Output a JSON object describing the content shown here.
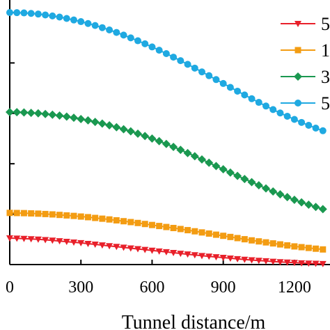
{
  "chart_data": {
    "type": "line",
    "title": "",
    "xlabel": "Tunnel distance/m",
    "ylabel": "",
    "xlim": [
      0,
      1350
    ],
    "ylim": [
      0,
      100
    ],
    "x_ticks": [
      0,
      300,
      600,
      900,
      1200
    ],
    "x_tick_labels": [
      "0",
      "300",
      "600",
      "900",
      "1200"
    ],
    "y_ticks": [
      0,
      20,
      40,
      60,
      80,
      100
    ],
    "grid": false,
    "legend_position": "top-right",
    "series": [
      {
        "name": "5",
        "color": "#e8202a",
        "marker": "triangle-down",
        "x": [
          0,
          30,
          60,
          90,
          120,
          150,
          180,
          210,
          240,
          270,
          300,
          330,
          360,
          390,
          420,
          450,
          480,
          510,
          540,
          570,
          600,
          630,
          660,
          690,
          720,
          750,
          780,
          810,
          840,
          870,
          900,
          930,
          960,
          990,
          1020,
          1050,
          1080,
          1110,
          1140,
          1170,
          1200,
          1230,
          1260,
          1290,
          1320
        ],
        "values": [
          10.5,
          10.4,
          10.3,
          10.15,
          10.0,
          9.8,
          9.6,
          9.35,
          9.1,
          8.85,
          8.6,
          8.3,
          8.0,
          7.7,
          7.4,
          7.1,
          6.8,
          6.5,
          6.2,
          5.9,
          5.6,
          5.3,
          5.0,
          4.7,
          4.4,
          4.1,
          3.8,
          3.5,
          3.25,
          3.0,
          2.75,
          2.5,
          2.25,
          2.0,
          1.8,
          1.6,
          1.4,
          1.2,
          1.05,
          0.9,
          0.75,
          0.6,
          0.5,
          0.4,
          0.3
        ]
      },
      {
        "name": "1",
        "color": "#f39c12",
        "marker": "square",
        "x": [
          0,
          30,
          60,
          90,
          120,
          150,
          180,
          210,
          240,
          270,
          300,
          330,
          360,
          390,
          420,
          450,
          480,
          510,
          540,
          570,
          600,
          630,
          660,
          690,
          720,
          750,
          780,
          810,
          840,
          870,
          900,
          930,
          960,
          990,
          1020,
          1050,
          1080,
          1110,
          1140,
          1170,
          1200,
          1230,
          1260,
          1290,
          1320
        ],
        "values": [
          20.5,
          20.45,
          20.4,
          20.3,
          20.2,
          20.05,
          19.9,
          19.7,
          19.5,
          19.3,
          19.05,
          18.8,
          18.5,
          18.2,
          17.9,
          17.55,
          17.2,
          16.85,
          16.5,
          16.1,
          15.7,
          15.3,
          14.9,
          14.5,
          14.1,
          13.65,
          13.2,
          12.75,
          12.3,
          11.85,
          11.4,
          10.95,
          10.5,
          10.05,
          9.6,
          9.2,
          8.8,
          8.4,
          8.0,
          7.6,
          7.2,
          6.9,
          6.6,
          6.3,
          6.0
        ]
      },
      {
        "name": "3",
        "color": "#1a9850",
        "marker": "diamond",
        "x": [
          0,
          30,
          60,
          90,
          120,
          150,
          180,
          210,
          240,
          270,
          300,
          330,
          360,
          390,
          420,
          450,
          480,
          510,
          540,
          570,
          600,
          630,
          660,
          690,
          720,
          750,
          780,
          810,
          840,
          870,
          900,
          930,
          960,
          990,
          1020,
          1050,
          1080,
          1110,
          1140,
          1170,
          1200,
          1230,
          1260,
          1290,
          1320
        ],
        "values": [
          60.5,
          60.45,
          60.35,
          60.2,
          60.0,
          59.75,
          59.45,
          59.1,
          58.7,
          58.25,
          57.75,
          57.2,
          56.6,
          55.95,
          55.25,
          54.5,
          53.7,
          52.85,
          51.95,
          51.0,
          50.0,
          48.95,
          47.85,
          46.7,
          45.5,
          44.25,
          43.0,
          41.7,
          40.4,
          39.1,
          37.8,
          36.5,
          35.2,
          33.95,
          32.7,
          31.45,
          30.2,
          29.0,
          27.85,
          26.75,
          25.7,
          24.7,
          23.75,
          22.85,
          22.0
        ]
      },
      {
        "name": "5",
        "color": "#1fa9e1",
        "marker": "circle",
        "x": [
          0,
          30,
          60,
          90,
          120,
          150,
          180,
          210,
          240,
          270,
          300,
          330,
          360,
          390,
          420,
          450,
          480,
          510,
          540,
          570,
          600,
          630,
          660,
          690,
          720,
          750,
          780,
          810,
          840,
          870,
          900,
          930,
          960,
          990,
          1020,
          1050,
          1080,
          1110,
          1140,
          1170,
          1200,
          1230,
          1260,
          1290,
          1320
        ],
        "values": [
          100.0,
          99.95,
          99.85,
          99.65,
          99.4,
          99.05,
          98.65,
          98.2,
          97.65,
          97.05,
          96.4,
          95.65,
          94.85,
          94.0,
          93.1,
          92.1,
          91.05,
          89.95,
          88.8,
          87.6,
          86.35,
          85.05,
          83.7,
          82.3,
          80.9,
          79.45,
          77.95,
          76.45,
          74.95,
          73.4,
          71.85,
          70.3,
          68.8,
          67.3,
          65.8,
          64.35,
          62.9,
          61.5,
          60.15,
          58.85,
          57.6,
          56.4,
          55.25,
          54.15,
          53.1
        ]
      }
    ]
  }
}
